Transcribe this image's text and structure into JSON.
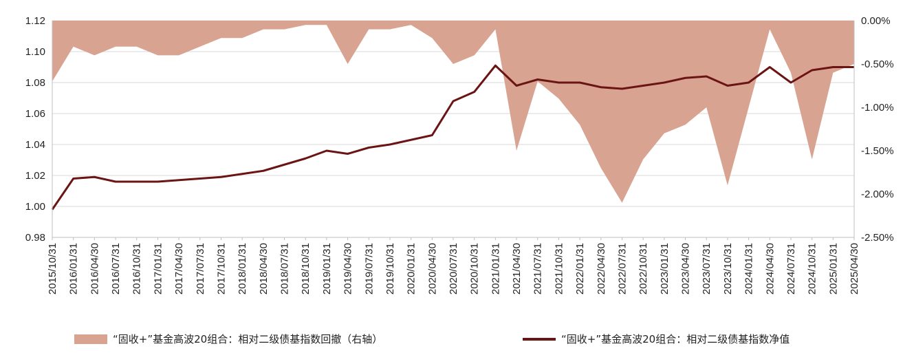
{
  "chart_data": {
    "type": "line",
    "left_axis": {
      "ylim": [
        0.98,
        1.12
      ],
      "ticks": [
        "0.98",
        "1.00",
        "1.02",
        "1.04",
        "1.06",
        "1.08",
        "1.10",
        "1.12"
      ]
    },
    "right_axis": {
      "ylim": [
        -2.5,
        0.0
      ],
      "ticks": [
        "-2.50%",
        "-2.00%",
        "-1.50%",
        "-1.00%",
        "-0.50%",
        "0.00%"
      ]
    },
    "x_labels": [
      "2015/10/31",
      "2016/01/31",
      "2016/04/30",
      "2016/07/31",
      "2016/10/31",
      "2017/01/31",
      "2017/04/30",
      "2017/07/31",
      "2017/10/31",
      "2018/01/31",
      "2018/04/30",
      "2018/07/31",
      "2018/10/31",
      "2019/01/31",
      "2019/04/30",
      "2019/07/31",
      "2019/10/31",
      "2020/01/31",
      "2020/04/30",
      "2020/07/31",
      "2020/10/31",
      "2021/01/31",
      "2021/04/30",
      "2021/07/31",
      "2021/10/31",
      "2022/01/31",
      "2022/04/30",
      "2022/07/31",
      "2022/10/31",
      "2023/01/31",
      "2023/04/30",
      "2023/07/31",
      "2023/10/31",
      "2024/01/31",
      "2024/04/30",
      "2024/07/31",
      "2024/10/31",
      "2025/01/31",
      "2025/04/30"
    ],
    "series": [
      {
        "name": "“固收+”基金高波20组合：相对二级债基指数回撤（右轴）",
        "type": "area",
        "axis": "right",
        "color": "#d9a391",
        "values": [
          -0.7,
          -0.3,
          -0.4,
          -0.3,
          -0.3,
          -0.4,
          -0.4,
          -0.3,
          -0.2,
          -0.2,
          -0.1,
          -0.1,
          -0.05,
          -0.05,
          -0.5,
          -0.1,
          -0.1,
          -0.05,
          -0.2,
          -0.5,
          -0.4,
          -0.1,
          -1.5,
          -0.7,
          -0.9,
          -1.2,
          -1.7,
          -2.1,
          -1.6,
          -1.3,
          -1.2,
          -1.0,
          -1.9,
          -1.0,
          -0.1,
          -0.6,
          -1.6,
          -0.6,
          -0.5
        ]
      },
      {
        "name": "“固收+”基金高波20组合：相对二级债基指数净值",
        "type": "line",
        "axis": "left",
        "color": "#6b1414",
        "values": [
          0.998,
          1.018,
          1.019,
          1.016,
          1.016,
          1.016,
          1.017,
          1.018,
          1.019,
          1.021,
          1.023,
          1.027,
          1.031,
          1.036,
          1.034,
          1.038,
          1.04,
          1.043,
          1.046,
          1.068,
          1.074,
          1.091,
          1.078,
          1.082,
          1.08,
          1.08,
          1.077,
          1.076,
          1.078,
          1.08,
          1.083,
          1.084,
          1.078,
          1.08,
          1.09,
          1.08,
          1.088,
          1.09,
          1.09
        ]
      }
    ]
  },
  "legend": {
    "area_label": "“固收+”基金高波20组合：相对二级债基指数回撤（右轴）",
    "line_label": "“固收+”基金高波20组合：相对二级债基指数净值"
  }
}
